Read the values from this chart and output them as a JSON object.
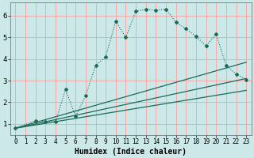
{
  "xlabel": "Humidex (Indice chaleur)",
  "bg_color": "#cce8e8",
  "grid_color": "#f2aaaa",
  "line_color": "#1a6b5a",
  "xlim": [
    -0.5,
    23.5
  ],
  "ylim": [
    0.5,
    6.6
  ],
  "xticks": [
    0,
    1,
    2,
    3,
    4,
    5,
    6,
    7,
    8,
    9,
    10,
    11,
    12,
    13,
    14,
    15,
    16,
    17,
    18,
    19,
    20,
    21,
    22,
    23
  ],
  "yticks": [
    1,
    2,
    3,
    4,
    5,
    6
  ],
  "zigzag": [
    [
      0,
      0.8
    ],
    [
      2,
      1.15
    ],
    [
      3,
      1.1
    ],
    [
      4,
      1.1
    ],
    [
      5,
      2.6
    ],
    [
      6,
      1.35
    ],
    [
      7,
      2.3
    ],
    [
      8,
      3.7
    ],
    [
      9,
      4.1
    ],
    [
      10,
      5.75
    ],
    [
      11,
      5.0
    ],
    [
      12,
      6.2
    ],
    [
      13,
      6.3
    ],
    [
      14,
      6.25
    ],
    [
      15,
      6.3
    ],
    [
      16,
      5.7
    ],
    [
      17,
      5.4
    ],
    [
      18,
      5.05
    ],
    [
      19,
      4.6
    ],
    [
      20,
      5.15
    ],
    [
      21,
      3.7
    ],
    [
      22,
      3.3
    ],
    [
      23,
      3.05
    ]
  ],
  "straight_lines": [
    [
      [
        0,
        0.8
      ],
      [
        23,
        3.85
      ]
    ],
    [
      [
        0,
        0.8
      ],
      [
        23,
        3.1
      ]
    ],
    [
      [
        0,
        0.8
      ],
      [
        23,
        2.55
      ]
    ]
  ]
}
